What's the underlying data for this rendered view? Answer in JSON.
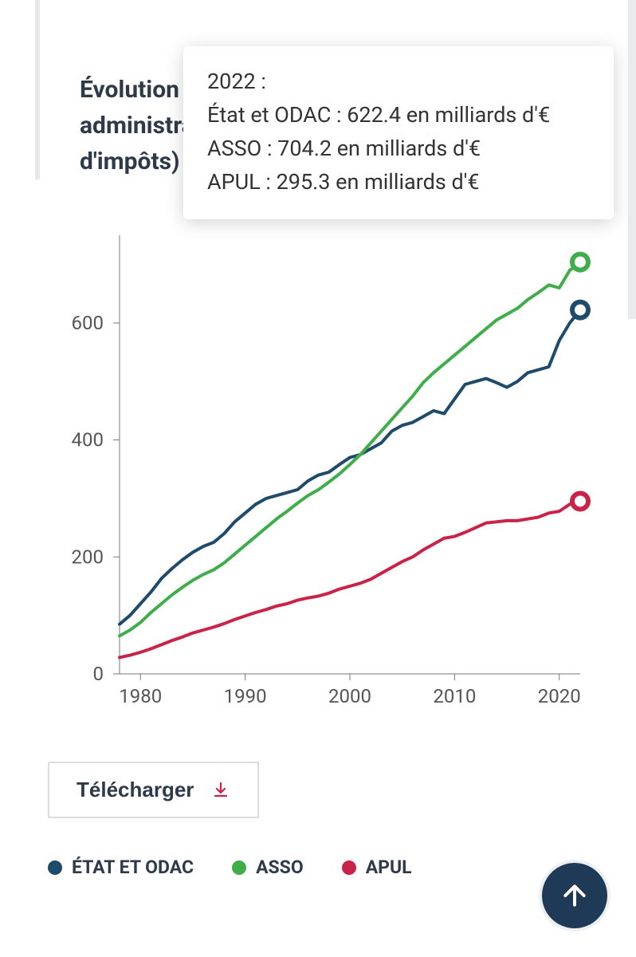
{
  "title": {
    "line1": "Évolution de",
    "line2": "administrati",
    "line3": "d'impôts)"
  },
  "tooltip": {
    "year": "2022 :",
    "rows": [
      "État et ODAC : 622.4 en milliards d'€",
      "ASSO : 704.2 en milliards d'€",
      "APUL : 295.3 en milliards d'€"
    ]
  },
  "chart": {
    "type": "line",
    "background_color": "#ffffff",
    "x": {
      "min": 1978,
      "max": 2022,
      "ticks": [
        1980,
        1990,
        2000,
        2010,
        2020
      ]
    },
    "y": {
      "min": 0,
      "max": 750,
      "ticks": [
        0,
        200,
        400,
        600
      ]
    },
    "line_width": 4,
    "marker_radius": 10,
    "marker_stroke_width": 6,
    "series": [
      {
        "name": "ÉTAT ET ODAC",
        "color": "#1e4a6b",
        "end_value": 622.4,
        "points": [
          [
            1978,
            85
          ],
          [
            1979,
            100
          ],
          [
            1980,
            120
          ],
          [
            1981,
            140
          ],
          [
            1982,
            163
          ],
          [
            1983,
            180
          ],
          [
            1984,
            195
          ],
          [
            1985,
            208
          ],
          [
            1986,
            218
          ],
          [
            1987,
            225
          ],
          [
            1988,
            240
          ],
          [
            1989,
            260
          ],
          [
            1990,
            275
          ],
          [
            1991,
            290
          ],
          [
            1992,
            300
          ],
          [
            1993,
            305
          ],
          [
            1994,
            310
          ],
          [
            1995,
            315
          ],
          [
            1996,
            330
          ],
          [
            1997,
            340
          ],
          [
            1998,
            345
          ],
          [
            1999,
            358
          ],
          [
            2000,
            370
          ],
          [
            2001,
            375
          ],
          [
            2002,
            385
          ],
          [
            2003,
            395
          ],
          [
            2004,
            415
          ],
          [
            2005,
            425
          ],
          [
            2006,
            430
          ],
          [
            2007,
            440
          ],
          [
            2008,
            450
          ],
          [
            2009,
            445
          ],
          [
            2010,
            470
          ],
          [
            2011,
            495
          ],
          [
            2012,
            500
          ],
          [
            2013,
            505
          ],
          [
            2014,
            498
          ],
          [
            2015,
            490
          ],
          [
            2016,
            500
          ],
          [
            2017,
            515
          ],
          [
            2018,
            520
          ],
          [
            2019,
            525
          ],
          [
            2020,
            570
          ],
          [
            2021,
            600
          ],
          [
            2022,
            622.4
          ]
        ]
      },
      {
        "name": "ASSO",
        "color": "#3fae4a",
        "end_value": 704.2,
        "points": [
          [
            1978,
            65
          ],
          [
            1979,
            75
          ],
          [
            1980,
            88
          ],
          [
            1981,
            105
          ],
          [
            1982,
            120
          ],
          [
            1983,
            135
          ],
          [
            1984,
            148
          ],
          [
            1985,
            160
          ],
          [
            1986,
            170
          ],
          [
            1987,
            178
          ],
          [
            1988,
            190
          ],
          [
            1989,
            205
          ],
          [
            1990,
            220
          ],
          [
            1991,
            235
          ],
          [
            1992,
            250
          ],
          [
            1993,
            265
          ],
          [
            1994,
            278
          ],
          [
            1995,
            292
          ],
          [
            1996,
            305
          ],
          [
            1997,
            315
          ],
          [
            1998,
            328
          ],
          [
            1999,
            342
          ],
          [
            2000,
            358
          ],
          [
            2001,
            375
          ],
          [
            2002,
            395
          ],
          [
            2003,
            415
          ],
          [
            2004,
            435
          ],
          [
            2005,
            455
          ],
          [
            2006,
            475
          ],
          [
            2007,
            498
          ],
          [
            2008,
            515
          ],
          [
            2009,
            530
          ],
          [
            2010,
            545
          ],
          [
            2011,
            560
          ],
          [
            2012,
            575
          ],
          [
            2013,
            590
          ],
          [
            2014,
            605
          ],
          [
            2015,
            615
          ],
          [
            2016,
            625
          ],
          [
            2017,
            640
          ],
          [
            2018,
            652
          ],
          [
            2019,
            665
          ],
          [
            2020,
            660
          ],
          [
            2021,
            690
          ],
          [
            2022,
            704.2
          ]
        ]
      },
      {
        "name": "APUL",
        "color": "#c9234a",
        "end_value": 295.3,
        "points": [
          [
            1978,
            28
          ],
          [
            1979,
            32
          ],
          [
            1980,
            37
          ],
          [
            1981,
            43
          ],
          [
            1982,
            50
          ],
          [
            1983,
            57
          ],
          [
            1984,
            63
          ],
          [
            1985,
            70
          ],
          [
            1986,
            75
          ],
          [
            1987,
            80
          ],
          [
            1988,
            86
          ],
          [
            1989,
            93
          ],
          [
            1990,
            99
          ],
          [
            1991,
            105
          ],
          [
            1992,
            110
          ],
          [
            1993,
            116
          ],
          [
            1994,
            120
          ],
          [
            1995,
            126
          ],
          [
            1996,
            130
          ],
          [
            1997,
            133
          ],
          [
            1998,
            138
          ],
          [
            1999,
            145
          ],
          [
            2000,
            150
          ],
          [
            2001,
            155
          ],
          [
            2002,
            162
          ],
          [
            2003,
            172
          ],
          [
            2004,
            182
          ],
          [
            2005,
            192
          ],
          [
            2006,
            200
          ],
          [
            2007,
            212
          ],
          [
            2008,
            222
          ],
          [
            2009,
            232
          ],
          [
            2010,
            235
          ],
          [
            2011,
            242
          ],
          [
            2012,
            250
          ],
          [
            2013,
            258
          ],
          [
            2014,
            260
          ],
          [
            2015,
            262
          ],
          [
            2016,
            262
          ],
          [
            2017,
            265
          ],
          [
            2018,
            268
          ],
          [
            2019,
            275
          ],
          [
            2020,
            278
          ],
          [
            2021,
            290
          ],
          [
            2022,
            295.3
          ]
        ]
      }
    ]
  },
  "download": {
    "label": "Télécharger"
  },
  "legend": [
    {
      "label": "ÉTAT ET ODAC",
      "color": "#1e4a6b"
    },
    {
      "label": "ASSO",
      "color": "#3fae4a"
    },
    {
      "label": "APUL",
      "color": "#c9234a"
    }
  ],
  "scroll_top_color": "#1e3a56"
}
